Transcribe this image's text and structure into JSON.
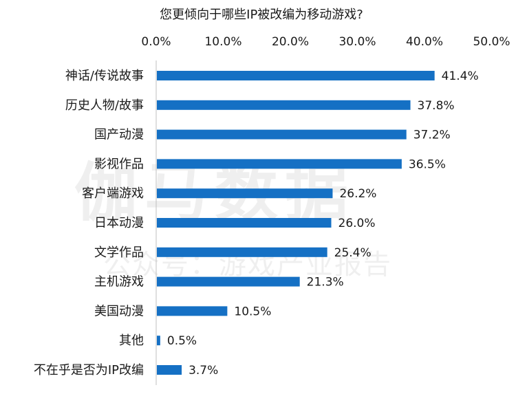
{
  "watermark": {
    "line1": "伽马数据",
    "line2": "公众号：游戏产业报告"
  },
  "chart_data": {
    "type": "bar",
    "orientation": "horizontal",
    "title": "您更倾向于哪些IP被改编为移动游戏?",
    "categories": [
      "神话/传说故事",
      "历史人物/故事",
      "国产动漫",
      "影视作品",
      "客户端游戏",
      "日本动漫",
      "文学作品",
      "主机游戏",
      "美国动漫",
      "其他",
      "不在乎是否为IP改编"
    ],
    "values": [
      41.4,
      37.8,
      37.2,
      36.5,
      26.2,
      26.0,
      25.4,
      21.3,
      10.5,
      0.5,
      3.7
    ],
    "value_labels": [
      "41.4%",
      "37.8%",
      "37.2%",
      "36.5%",
      "26.2%",
      "26.0%",
      "25.4%",
      "21.3%",
      "10.5%",
      "0.5%",
      "3.7%"
    ],
    "x_ticks": [
      "0.0%",
      "10.0%",
      "20.0%",
      "30.0%",
      "40.0%",
      "50.0%"
    ],
    "xlim": [
      0,
      50
    ],
    "x_axis_position": "top",
    "grid": false,
    "legend": "none",
    "bar_color": "#1570c4",
    "axis_color": "#bfbfbf"
  }
}
